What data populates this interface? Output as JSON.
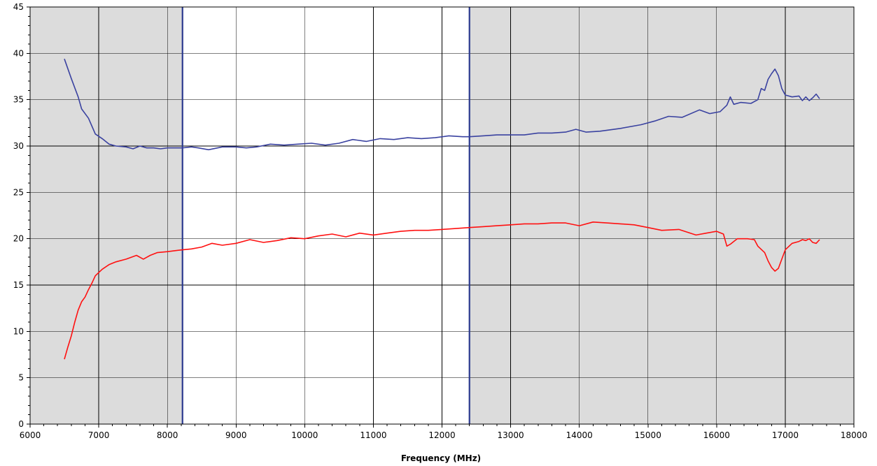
{
  "chart_data": {
    "type": "line",
    "title": "",
    "xlabel": "Frequency (MHz)",
    "ylabel": "",
    "xlim": [
      6000,
      18000
    ],
    "ylim": [
      0,
      45
    ],
    "x_ticks": [
      6000,
      7000,
      8000,
      9000,
      10000,
      11000,
      12000,
      13000,
      14000,
      15000,
      16000,
      17000,
      18000
    ],
    "y_ticks": [
      0,
      5,
      10,
      15,
      20,
      25,
      30,
      35,
      40,
      45
    ],
    "grid": true,
    "legend": "none",
    "colors": {
      "shaded_band": "#dcdcdc",
      "band_edge": "#2b3a8f",
      "grid": "#000000",
      "series_blue": "#3a42a0",
      "series_red": "#ff1010"
    },
    "shaded_regions": [
      {
        "from": 6000,
        "to": 8220
      },
      {
        "from": 12400,
        "to": 18000
      }
    ],
    "band_edges": [
      8220,
      12400
    ],
    "series": [
      {
        "color": "#3a42a0",
        "points": [
          [
            6500,
            39.4
          ],
          [
            6600,
            37.3
          ],
          [
            6700,
            35.3
          ],
          [
            6750,
            34.0
          ],
          [
            6850,
            33.0
          ],
          [
            6950,
            31.3
          ],
          [
            7050,
            30.8
          ],
          [
            7150,
            30.2
          ],
          [
            7250,
            30.0
          ],
          [
            7400,
            29.9
          ],
          [
            7500,
            29.7
          ],
          [
            7600,
            30.0
          ],
          [
            7700,
            29.8
          ],
          [
            7800,
            29.8
          ],
          [
            7900,
            29.7
          ],
          [
            8000,
            29.8
          ],
          [
            8100,
            29.8
          ],
          [
            8220,
            29.8
          ],
          [
            8350,
            29.9
          ],
          [
            8450,
            29.8
          ],
          [
            8600,
            29.6
          ],
          [
            8800,
            29.9
          ],
          [
            9000,
            29.9
          ],
          [
            9150,
            29.8
          ],
          [
            9300,
            29.9
          ],
          [
            9500,
            30.2
          ],
          [
            9700,
            30.1
          ],
          [
            9900,
            30.2
          ],
          [
            10100,
            30.3
          ],
          [
            10300,
            30.1
          ],
          [
            10500,
            30.3
          ],
          [
            10700,
            30.7
          ],
          [
            10900,
            30.5
          ],
          [
            11100,
            30.8
          ],
          [
            11300,
            30.7
          ],
          [
            11500,
            30.9
          ],
          [
            11700,
            30.8
          ],
          [
            11900,
            30.9
          ],
          [
            12100,
            31.1
          ],
          [
            12300,
            31.0
          ],
          [
            12400,
            31.0
          ],
          [
            12600,
            31.1
          ],
          [
            12800,
            31.2
          ],
          [
            13000,
            31.2
          ],
          [
            13200,
            31.2
          ],
          [
            13400,
            31.4
          ],
          [
            13600,
            31.4
          ],
          [
            13800,
            31.5
          ],
          [
            13950,
            31.8
          ],
          [
            14100,
            31.5
          ],
          [
            14300,
            31.6
          ],
          [
            14600,
            31.9
          ],
          [
            14900,
            32.3
          ],
          [
            15100,
            32.7
          ],
          [
            15300,
            33.2
          ],
          [
            15500,
            33.1
          ],
          [
            15750,
            33.9
          ],
          [
            15900,
            33.5
          ],
          [
            16050,
            33.7
          ],
          [
            16150,
            34.4
          ],
          [
            16200,
            35.3
          ],
          [
            16250,
            34.5
          ],
          [
            16350,
            34.7
          ],
          [
            16500,
            34.6
          ],
          [
            16600,
            35.0
          ],
          [
            16650,
            36.2
          ],
          [
            16700,
            36.0
          ],
          [
            16750,
            37.2
          ],
          [
            16800,
            37.8
          ],
          [
            16850,
            38.3
          ],
          [
            16900,
            37.6
          ],
          [
            16950,
            36.2
          ],
          [
            17000,
            35.5
          ],
          [
            17100,
            35.3
          ],
          [
            17200,
            35.4
          ],
          [
            17250,
            34.9
          ],
          [
            17300,
            35.3
          ],
          [
            17350,
            34.9
          ],
          [
            17400,
            35.2
          ],
          [
            17450,
            35.6
          ],
          [
            17500,
            35.1
          ]
        ]
      },
      {
        "color": "#ff1010",
        "points": [
          [
            6500,
            7.0
          ],
          [
            6550,
            8.3
          ],
          [
            6600,
            9.5
          ],
          [
            6650,
            11.0
          ],
          [
            6700,
            12.3
          ],
          [
            6750,
            13.2
          ],
          [
            6800,
            13.7
          ],
          [
            6850,
            14.5
          ],
          [
            6900,
            15.2
          ],
          [
            6950,
            16.0
          ],
          [
            7050,
            16.7
          ],
          [
            7150,
            17.2
          ],
          [
            7250,
            17.5
          ],
          [
            7400,
            17.8
          ],
          [
            7550,
            18.2
          ],
          [
            7650,
            17.8
          ],
          [
            7750,
            18.2
          ],
          [
            7850,
            18.5
          ],
          [
            8000,
            18.6
          ],
          [
            8100,
            18.7
          ],
          [
            8220,
            18.8
          ],
          [
            8350,
            18.9
          ],
          [
            8500,
            19.1
          ],
          [
            8650,
            19.5
          ],
          [
            8800,
            19.3
          ],
          [
            9000,
            19.5
          ],
          [
            9200,
            19.9
          ],
          [
            9400,
            19.6
          ],
          [
            9600,
            19.8
          ],
          [
            9800,
            20.1
          ],
          [
            10000,
            20.0
          ],
          [
            10200,
            20.3
          ],
          [
            10400,
            20.5
          ],
          [
            10600,
            20.2
          ],
          [
            10800,
            20.6
          ],
          [
            11000,
            20.4
          ],
          [
            11200,
            20.6
          ],
          [
            11400,
            20.8
          ],
          [
            11600,
            20.9
          ],
          [
            11800,
            20.9
          ],
          [
            12000,
            21.0
          ],
          [
            12200,
            21.1
          ],
          [
            12400,
            21.2
          ],
          [
            12600,
            21.3
          ],
          [
            12800,
            21.4
          ],
          [
            13000,
            21.5
          ],
          [
            13200,
            21.6
          ],
          [
            13400,
            21.6
          ],
          [
            13600,
            21.7
          ],
          [
            13800,
            21.7
          ],
          [
            14000,
            21.4
          ],
          [
            14200,
            21.8
          ],
          [
            14400,
            21.7
          ],
          [
            14600,
            21.6
          ],
          [
            14800,
            21.5
          ],
          [
            15000,
            21.2
          ],
          [
            15200,
            20.9
          ],
          [
            15450,
            21.0
          ],
          [
            15700,
            20.4
          ],
          [
            15850,
            20.6
          ],
          [
            16000,
            20.8
          ],
          [
            16100,
            20.5
          ],
          [
            16150,
            19.2
          ],
          [
            16200,
            19.4
          ],
          [
            16250,
            19.7
          ],
          [
            16300,
            20.0
          ],
          [
            16450,
            20.0
          ],
          [
            16550,
            19.9
          ],
          [
            16600,
            19.2
          ],
          [
            16700,
            18.5
          ],
          [
            16750,
            17.6
          ],
          [
            16800,
            16.9
          ],
          [
            16850,
            16.5
          ],
          [
            16900,
            16.8
          ],
          [
            16950,
            17.8
          ],
          [
            17000,
            18.8
          ],
          [
            17100,
            19.5
          ],
          [
            17200,
            19.7
          ],
          [
            17250,
            19.9
          ],
          [
            17300,
            19.8
          ],
          [
            17350,
            20.0
          ],
          [
            17400,
            19.6
          ],
          [
            17450,
            19.5
          ],
          [
            17500,
            19.9
          ]
        ]
      }
    ]
  }
}
